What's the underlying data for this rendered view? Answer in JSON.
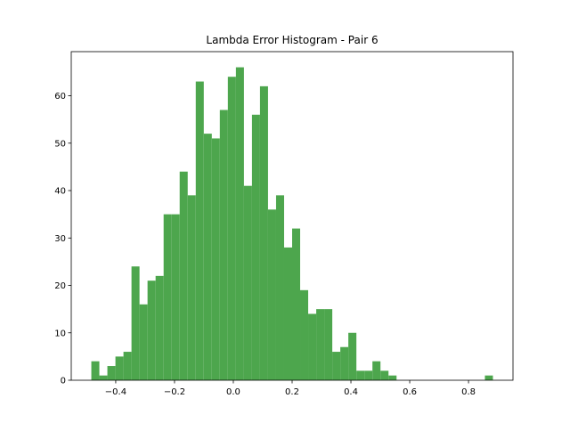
{
  "chart_data": {
    "type": "histogram",
    "title": "Lambda Error Histogram - Pair 6",
    "bins": [
      -0.483,
      -0.4557,
      -0.4284,
      -0.401,
      -0.3737,
      -0.3464,
      -0.3191,
      -0.2918,
      -0.2644,
      -0.2371,
      -0.2098,
      -0.1825,
      -0.1552,
      -0.1278,
      -0.1005,
      -0.0732,
      -0.0459,
      -0.0186,
      0.0088,
      0.0361,
      0.0634,
      0.0907,
      0.118,
      0.1454,
      0.1727,
      0.2,
      0.2273,
      0.2546,
      0.282,
      0.3093,
      0.3366,
      0.3639,
      0.3912,
      0.4186,
      0.4459,
      0.4732,
      0.5005,
      0.5278,
      0.5552,
      0.5825,
      0.6098,
      0.6371,
      0.6644,
      0.6918,
      0.7191,
      0.7464,
      0.7737,
      0.801,
      0.8284,
      0.8557,
      0.883
    ],
    "values": [
      4,
      1,
      3,
      5,
      6,
      24,
      16,
      21,
      22,
      35,
      35,
      44,
      39,
      63,
      52,
      51,
      57,
      64,
      66,
      41,
      56,
      62,
      36,
      39,
      28,
      32,
      19,
      14,
      15,
      15,
      6,
      7,
      10,
      2,
      2,
      4,
      2,
      1,
      0,
      0,
      0,
      0,
      0,
      0,
      0,
      0,
      0,
      0,
      0,
      1
    ],
    "color": "#4da64d",
    "xlim": [
      -0.5513,
      0.9513
    ],
    "xticks": [
      {
        "value": -0.4,
        "label": "−0.4"
      },
      {
        "value": -0.2,
        "label": "−0.2"
      },
      {
        "value": 0,
        "label": "0.0"
      },
      0.2,
      0.4,
      0.6,
      0.8
    ],
    "ylim": [
      0,
      69.3
    ],
    "yticks": [
      0,
      10,
      20,
      30,
      40,
      50,
      60
    ]
  }
}
